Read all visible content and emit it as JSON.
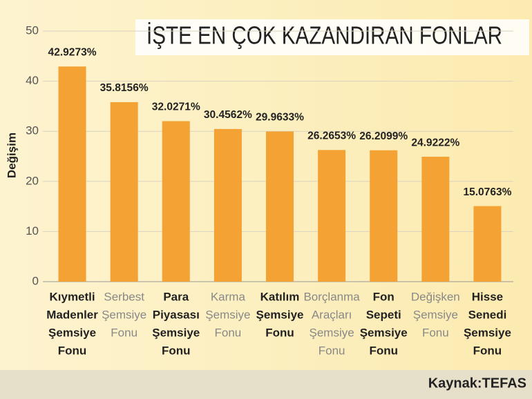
{
  "chart_data": {
    "type": "bar",
    "title": "İŞTE EN ÇOK KAZANDIRAN FONLAR",
    "y_label": "Değişim",
    "source": "Kaynak:TEFAS",
    "categories": [
      [
        "Kıymetli",
        "Madenler",
        "Şemsiye",
        "Fonu"
      ],
      [
        "Serbest",
        "Şemsiye",
        "Fonu"
      ],
      [
        "Para",
        "Piyasası",
        "Şemsiye",
        "Fonu"
      ],
      [
        "Karma",
        "Şemsiye",
        "Fonu"
      ],
      [
        "Katılım",
        "Şemsiye",
        "Fonu"
      ],
      [
        "Borçlanma",
        "Araçları",
        "Şemsiye",
        "Fonu"
      ],
      [
        "Fon",
        "Sepeti",
        "Şemsiye",
        "Fonu"
      ],
      [
        "Değişken",
        "Şemsiye",
        "Fonu"
      ],
      [
        "Hisse",
        "Senedi",
        "Şemsiye",
        "Fonu"
      ]
    ],
    "label_bold": [
      true,
      false,
      true,
      false,
      true,
      false,
      true,
      false,
      true
    ],
    "values": [
      42.9273,
      35.8156,
      32.0271,
      30.4562,
      29.9633,
      26.2653,
      26.2099,
      24.9222,
      15.0763
    ],
    "value_labels": [
      "42.9273%",
      "35.8156%",
      "32.0271%",
      "30.4562%",
      "29.9633%",
      "26.2653%",
      "26.2099%",
      "24.9222%",
      "15.0763%"
    ],
    "color": "#f4a233",
    "ylim": [
      0,
      50
    ],
    "yticks": [
      0,
      10,
      20,
      30,
      40,
      50
    ],
    "grid": true
  }
}
